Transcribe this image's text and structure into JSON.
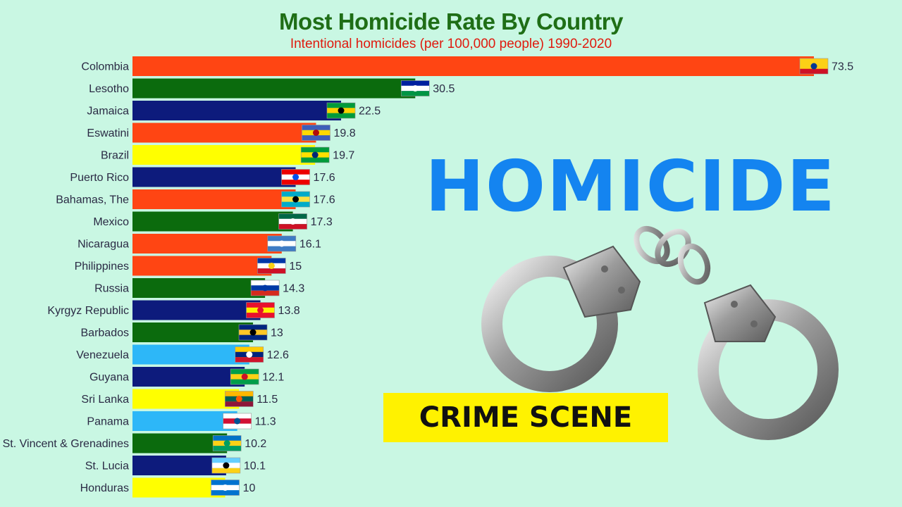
{
  "chart_data": {
    "type": "bar",
    "orientation": "horizontal",
    "title": "Most Homicide Rate By Country",
    "subtitle": "Intentional homicides (per 100,000 people) 1990-2020",
    "xlim": [
      0,
      75
    ],
    "grid": false,
    "categories": [
      "Colombia",
      "Lesotho",
      "Jamaica",
      "Eswatini",
      "Brazil",
      "Puerto Rico",
      "Bahamas, The",
      "Mexico",
      "Nicaragua",
      "Philippines",
      "Russia",
      "Kyrgyz Republic",
      "Barbados",
      "Venezuela",
      "Guyana",
      "Sri Lanka",
      "Panama",
      "St. Vincent & Grenadines",
      "St. Lucia",
      "Honduras"
    ],
    "values": [
      73.5,
      30.5,
      22.5,
      19.8,
      19.7,
      17.6,
      17.6,
      17.3,
      16.1,
      15,
      14.3,
      13.8,
      13,
      12.6,
      12.1,
      11.5,
      11.3,
      10.2,
      10.1,
      10
    ],
    "value_labels": [
      "73.5",
      "30.5",
      "22.5",
      "19.8",
      "19.7",
      "17.6",
      "17.6",
      "17.3",
      "16.1",
      "15",
      "14.3",
      "13.8",
      "13",
      "12.6",
      "12.1",
      "11.5",
      "11.3",
      "10.2",
      "10.1",
      "10"
    ],
    "bar_colors": [
      "#ff4513",
      "#0b6b0d",
      "#0d1b7c",
      "#ff4513",
      "#ffff00",
      "#0d1b7c",
      "#ff4513",
      "#0b6b0d",
      "#ff4513",
      "#ff4513",
      "#0b6b0d",
      "#0d1b7c",
      "#0b6b0d",
      "#2db7f8",
      "#0d1b7c",
      "#ffff00",
      "#2db7f8",
      "#0b6b0d",
      "#0d1b7c",
      "#ffff00"
    ],
    "flags": [
      [
        "#fcd116",
        "#fcd116",
        "#003893",
        "#ce1126"
      ],
      [
        "#00209f",
        "#ffffff",
        "#ffffff",
        "#009543"
      ],
      [
        "#009b3a",
        "#fed100",
        "#000000",
        "#009b3a"
      ],
      [
        "#3e5eb9",
        "#ffd900",
        "#b10c0c",
        "#3e5eb9"
      ],
      [
        "#009c3b",
        "#ffdf00",
        "#002776",
        "#009c3b"
      ],
      [
        "#ed0000",
        "#ffffff",
        "#0050f0",
        "#ed0000"
      ],
      [
        "#00abc9",
        "#fae042",
        "#000000",
        "#00abc9"
      ],
      [
        "#006847",
        "#ffffff",
        "#ffffff",
        "#ce1126"
      ],
      [
        "#3e7cc4",
        "#ffffff",
        "#ffffff",
        "#3e7cc4"
      ],
      [
        "#0038a8",
        "#ffffff",
        "#fcd116",
        "#ce1126"
      ],
      [
        "#ffffff",
        "#0039a6",
        "#0039a6",
        "#d52b1e"
      ],
      [
        "#e8112d",
        "#ffef00",
        "#e8112d",
        "#e8112d"
      ],
      [
        "#00267f",
        "#ffc726",
        "#000000",
        "#00267f"
      ],
      [
        "#ffcc00",
        "#00247d",
        "#ffffff",
        "#cf142b"
      ],
      [
        "#009e49",
        "#fcd116",
        "#ce1126",
        "#009e49"
      ],
      [
        "#ffb700",
        "#005f56",
        "#ff5b00",
        "#8d153a"
      ],
      [
        "#ffffff",
        "#d21034",
        "#005293",
        "#ffffff"
      ],
      [
        "#0072c6",
        "#fcd116",
        "#009e60",
        "#009e60"
      ],
      [
        "#65cfff",
        "#ffffff",
        "#000000",
        "#fcd116"
      ],
      [
        "#0073cf",
        "#ffffff",
        "#ffffff",
        "#0073cf"
      ]
    ]
  },
  "overlay": {
    "headline": "HOMICIDE",
    "tag": "CRIME SCENE",
    "image": "handcuffs-icon",
    "tag_background": "#fff200",
    "headline_color": "#1484f0"
  }
}
